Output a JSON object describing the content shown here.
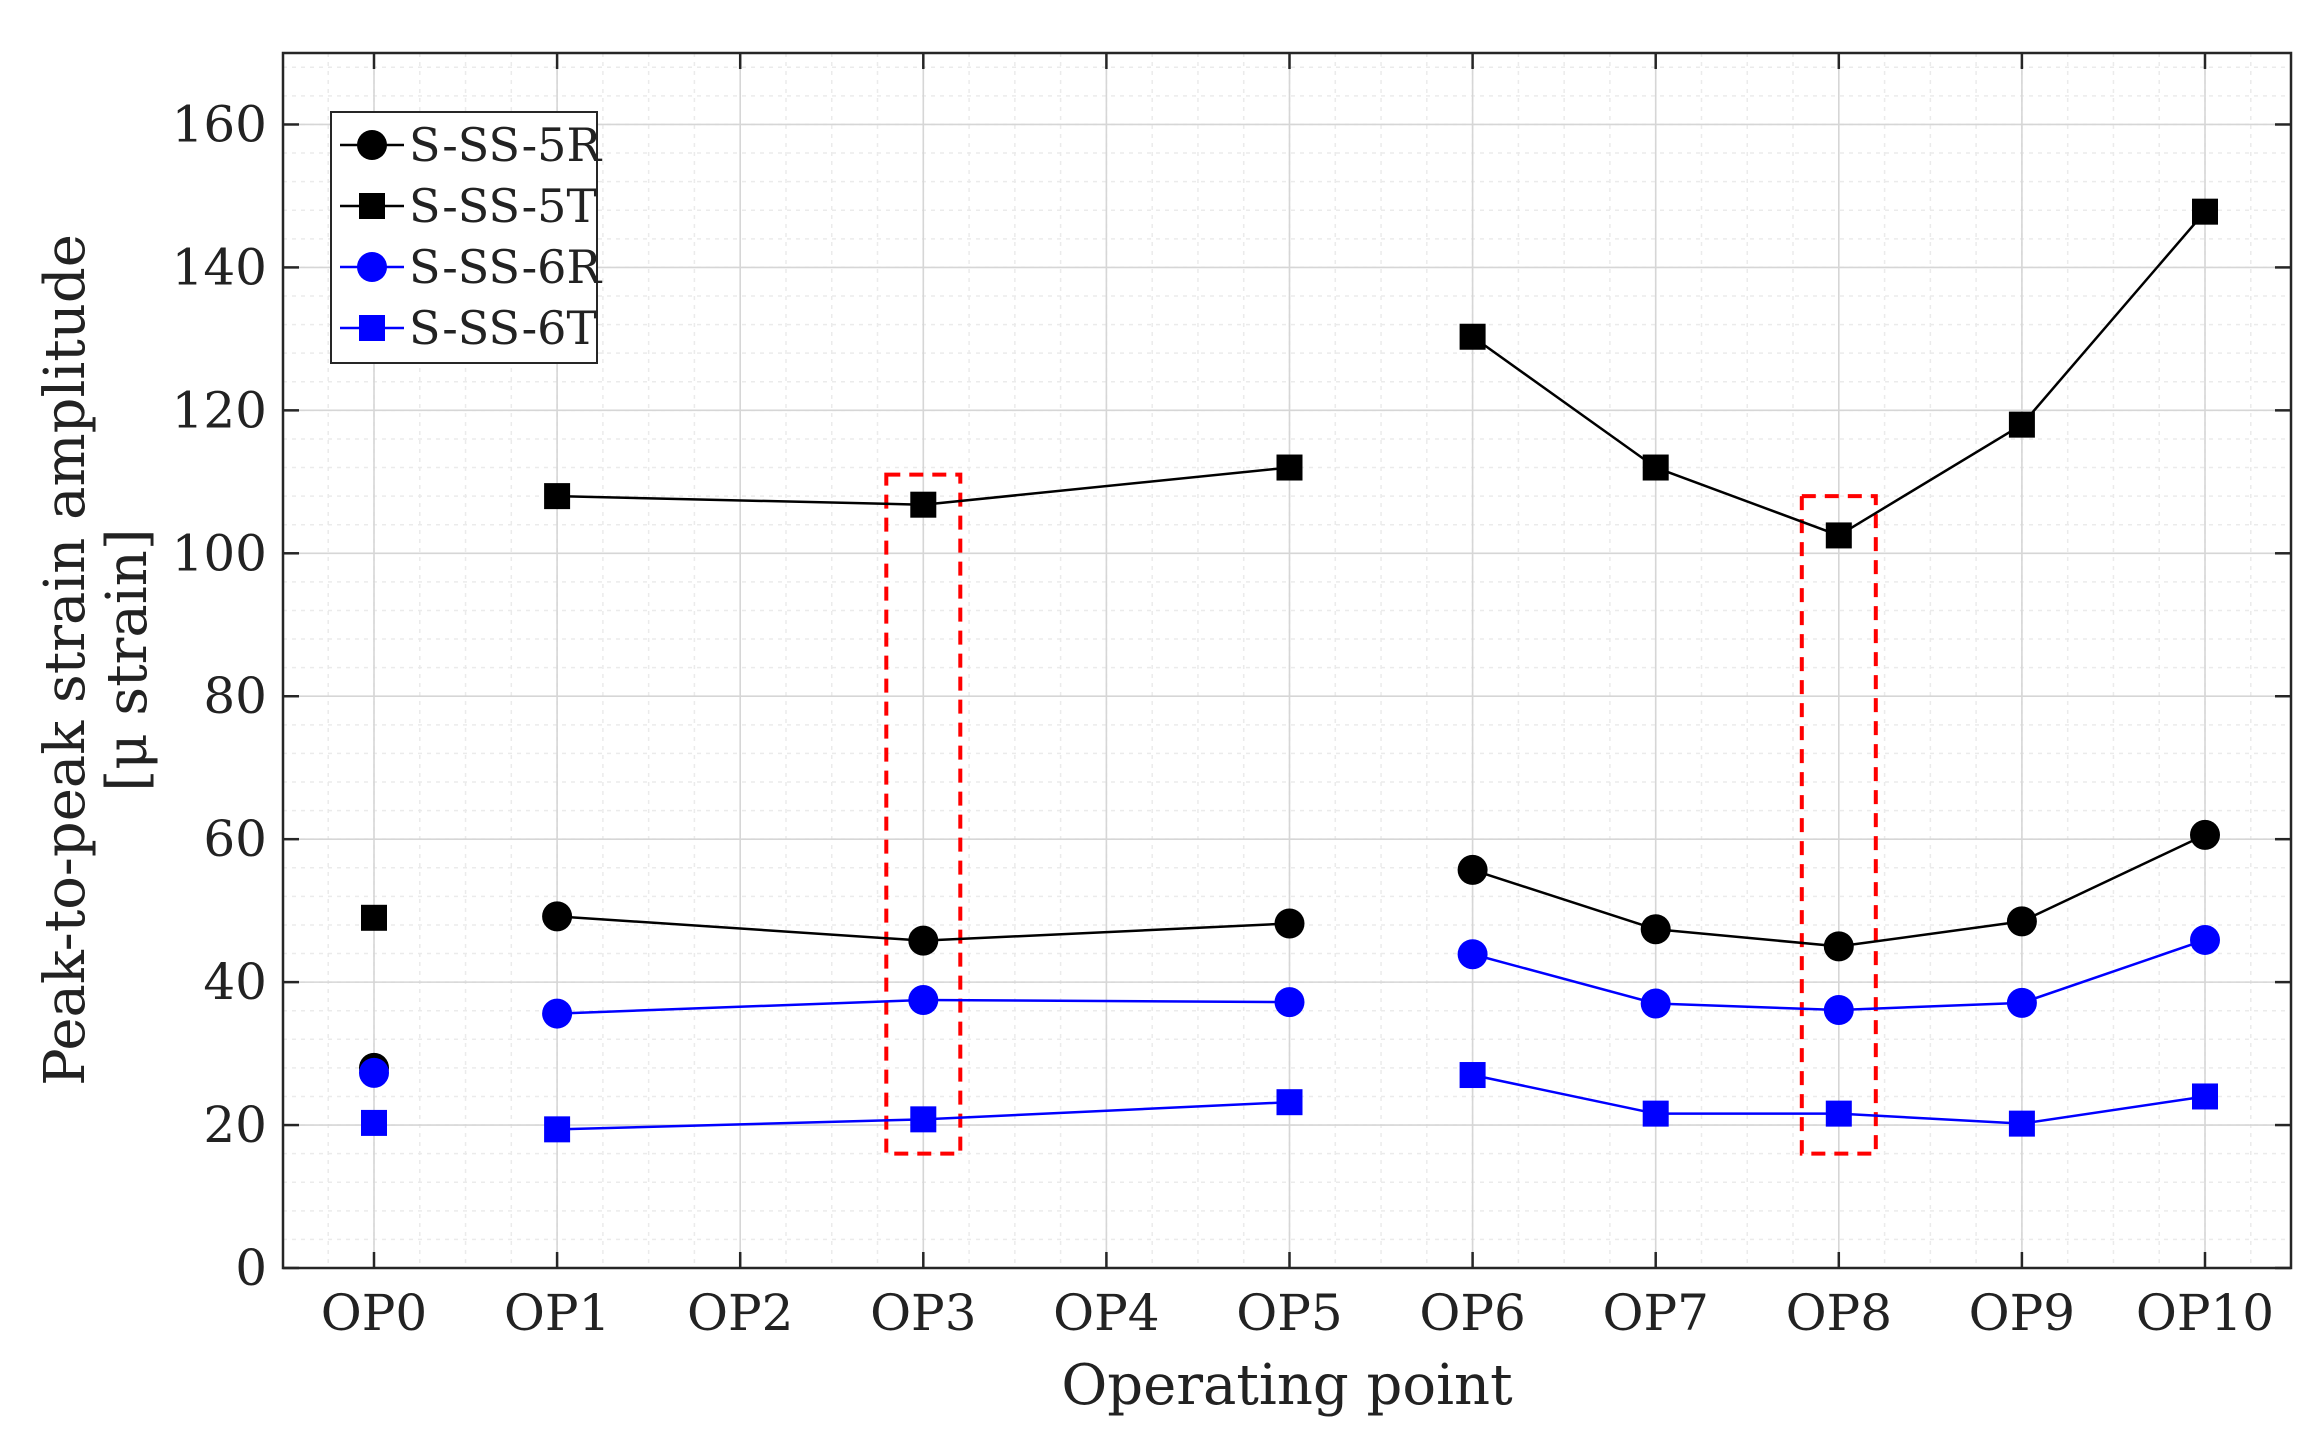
{
  "chart_data": {
    "type": "line",
    "xlabel": "Operating point",
    "ylabel": [
      "Peak-to-peak strain amplitude",
      "[μ strain]"
    ],
    "categories": [
      "OP0",
      "OP1",
      "OP2",
      "OP3",
      "OP4",
      "OP5",
      "OP6",
      "OP7",
      "OP8",
      "OP9",
      "OP10"
    ],
    "ylim": [
      0,
      170
    ],
    "yticks": [
      0,
      20,
      40,
      60,
      80,
      100,
      120,
      140,
      160
    ],
    "grid": true,
    "minor_grid": true,
    "legend_position": "top-left",
    "series": [
      {
        "name": "S-SS-5R",
        "color": "#000000",
        "marker": "circle",
        "values": [
          28,
          49.2,
          null,
          45.8,
          null,
          48.2,
          55.7,
          47.4,
          45,
          48.5,
          60.6
        ]
      },
      {
        "name": "S-SS-5T",
        "color": "#000000",
        "marker": "square",
        "values": [
          49,
          108,
          null,
          106.8,
          null,
          112,
          130.3,
          112,
          102.5,
          118,
          147.8
        ]
      },
      {
        "name": "S-SS-6R",
        "color": "#0000ff",
        "marker": "circle",
        "values": [
          27.3,
          35.6,
          null,
          37.5,
          null,
          37.2,
          43.9,
          37,
          36.1,
          37.1,
          45.9
        ]
      },
      {
        "name": "S-SS-6T",
        "color": "#0000ff",
        "marker": "square",
        "values": [
          20.3,
          19.4,
          null,
          20.8,
          null,
          23.2,
          27,
          21.6,
          21.6,
          20.2,
          24
        ]
      }
    ],
    "line_segments": [
      [
        1,
        3
      ],
      [
        3,
        5
      ],
      [
        6,
        7
      ],
      [
        7,
        8
      ],
      [
        8,
        9
      ],
      [
        9,
        10
      ]
    ],
    "highlights": [
      {
        "category": "OP3",
        "ymin": 16,
        "ymax": 111,
        "color": "#ff0000",
        "style": "dashed"
      },
      {
        "category": "OP8",
        "ymin": 16,
        "ymax": 108,
        "color": "#ff0000",
        "style": "dashed"
      }
    ]
  }
}
